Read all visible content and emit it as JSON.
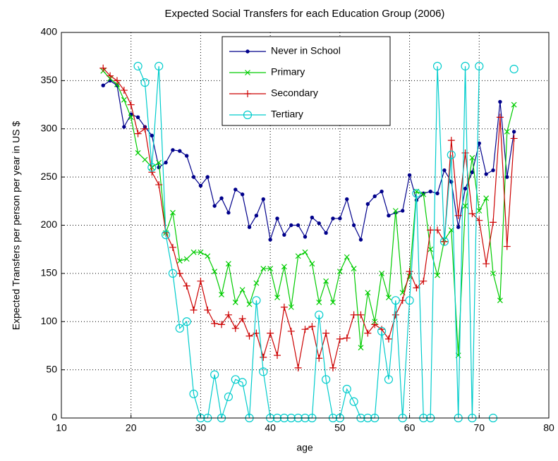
{
  "chart_data": {
    "type": "line",
    "title": "Expected Social Transfers for each Education Group (2006)",
    "x_label": "age",
    "y_label": "Expected Transfers per person per year in US $",
    "xlim": [
      10,
      80
    ],
    "xticks": [
      10,
      20,
      30,
      40,
      50,
      60,
      70,
      80
    ],
    "ylim": [
      0,
      400
    ],
    "yticks": [
      0,
      50,
      100,
      150,
      200,
      250,
      300,
      350,
      400
    ],
    "grid": true,
    "legend": "top-center",
    "x": [
      16,
      17,
      18,
      19,
      20,
      21,
      22,
      23,
      24,
      25,
      26,
      27,
      28,
      29,
      30,
      31,
      32,
      33,
      34,
      35,
      36,
      37,
      38,
      39,
      40,
      41,
      42,
      43,
      44,
      45,
      46,
      47,
      48,
      49,
      50,
      51,
      52,
      53,
      54,
      55,
      56,
      57,
      58,
      59,
      60,
      61,
      62,
      63,
      64,
      65,
      66,
      67,
      68,
      69,
      70,
      71,
      72,
      73,
      74,
      75
    ],
    "series": [
      {
        "name": "Never in School",
        "color": "#00008b",
        "marker": "dot",
        "values": [
          345,
          350,
          345,
          302,
          315,
          312,
          302,
          293,
          260,
          265,
          278,
          277,
          272,
          250,
          241,
          250,
          220,
          228,
          213,
          237,
          232,
          198,
          210,
          227,
          185,
          207,
          190,
          200,
          200,
          188,
          208,
          202,
          192,
          207,
          207,
          227,
          200,
          185,
          222,
          230,
          235,
          210,
          213,
          215,
          252,
          226,
          233,
          235,
          233,
          257,
          245,
          198,
          238,
          255,
          285,
          253,
          257,
          328,
          250,
          297
        ]
      },
      {
        "name": "Primary",
        "color": "#00cc00",
        "marker": "x",
        "values": [
          360,
          352,
          346,
          330,
          312,
          275,
          268,
          260,
          265,
          192,
          213,
          163,
          165,
          172,
          172,
          168,
          152,
          128,
          160,
          120,
          133,
          118,
          140,
          155,
          155,
          125,
          157,
          115,
          168,
          172,
          160,
          120,
          142,
          120,
          152,
          167,
          155,
          73,
          130,
          100,
          150,
          125,
          215,
          130,
          147,
          235,
          232,
          175,
          148,
          185,
          195,
          65,
          220,
          270,
          215,
          228,
          150,
          122,
          297,
          325
        ]
      },
      {
        "name": "Secondary",
        "color": "#cc0000",
        "marker": "plus",
        "values": [
          363,
          355,
          350,
          340,
          325,
          295,
          300,
          255,
          242,
          192,
          177,
          150,
          137,
          112,
          142,
          112,
          98,
          97,
          107,
          93,
          103,
          85,
          88,
          63,
          88,
          65,
          115,
          90,
          52,
          92,
          95,
          62,
          88,
          52,
          82,
          83,
          107,
          107,
          88,
          97,
          92,
          82,
          107,
          122,
          152,
          135,
          142,
          195,
          195,
          183,
          288,
          210,
          275,
          212,
          205,
          160,
          203,
          312,
          178,
          290
        ]
      },
      {
        "name": "Tertiary",
        "color": "#00cccc",
        "marker": "circle",
        "values": [
          null,
          null,
          null,
          null,
          null,
          365,
          348,
          260,
          365,
          190,
          150,
          93,
          100,
          25,
          0,
          0,
          45,
          0,
          22,
          40,
          37,
          0,
          122,
          48,
          0,
          0,
          0,
          0,
          0,
          0,
          0,
          107,
          40,
          0,
          0,
          30,
          17,
          0,
          0,
          0,
          90,
          40,
          122,
          0,
          122,
          233,
          0,
          0,
          365,
          183,
          273,
          0,
          365,
          0,
          365,
          null,
          0,
          null,
          null,
          362
        ]
      }
    ]
  }
}
